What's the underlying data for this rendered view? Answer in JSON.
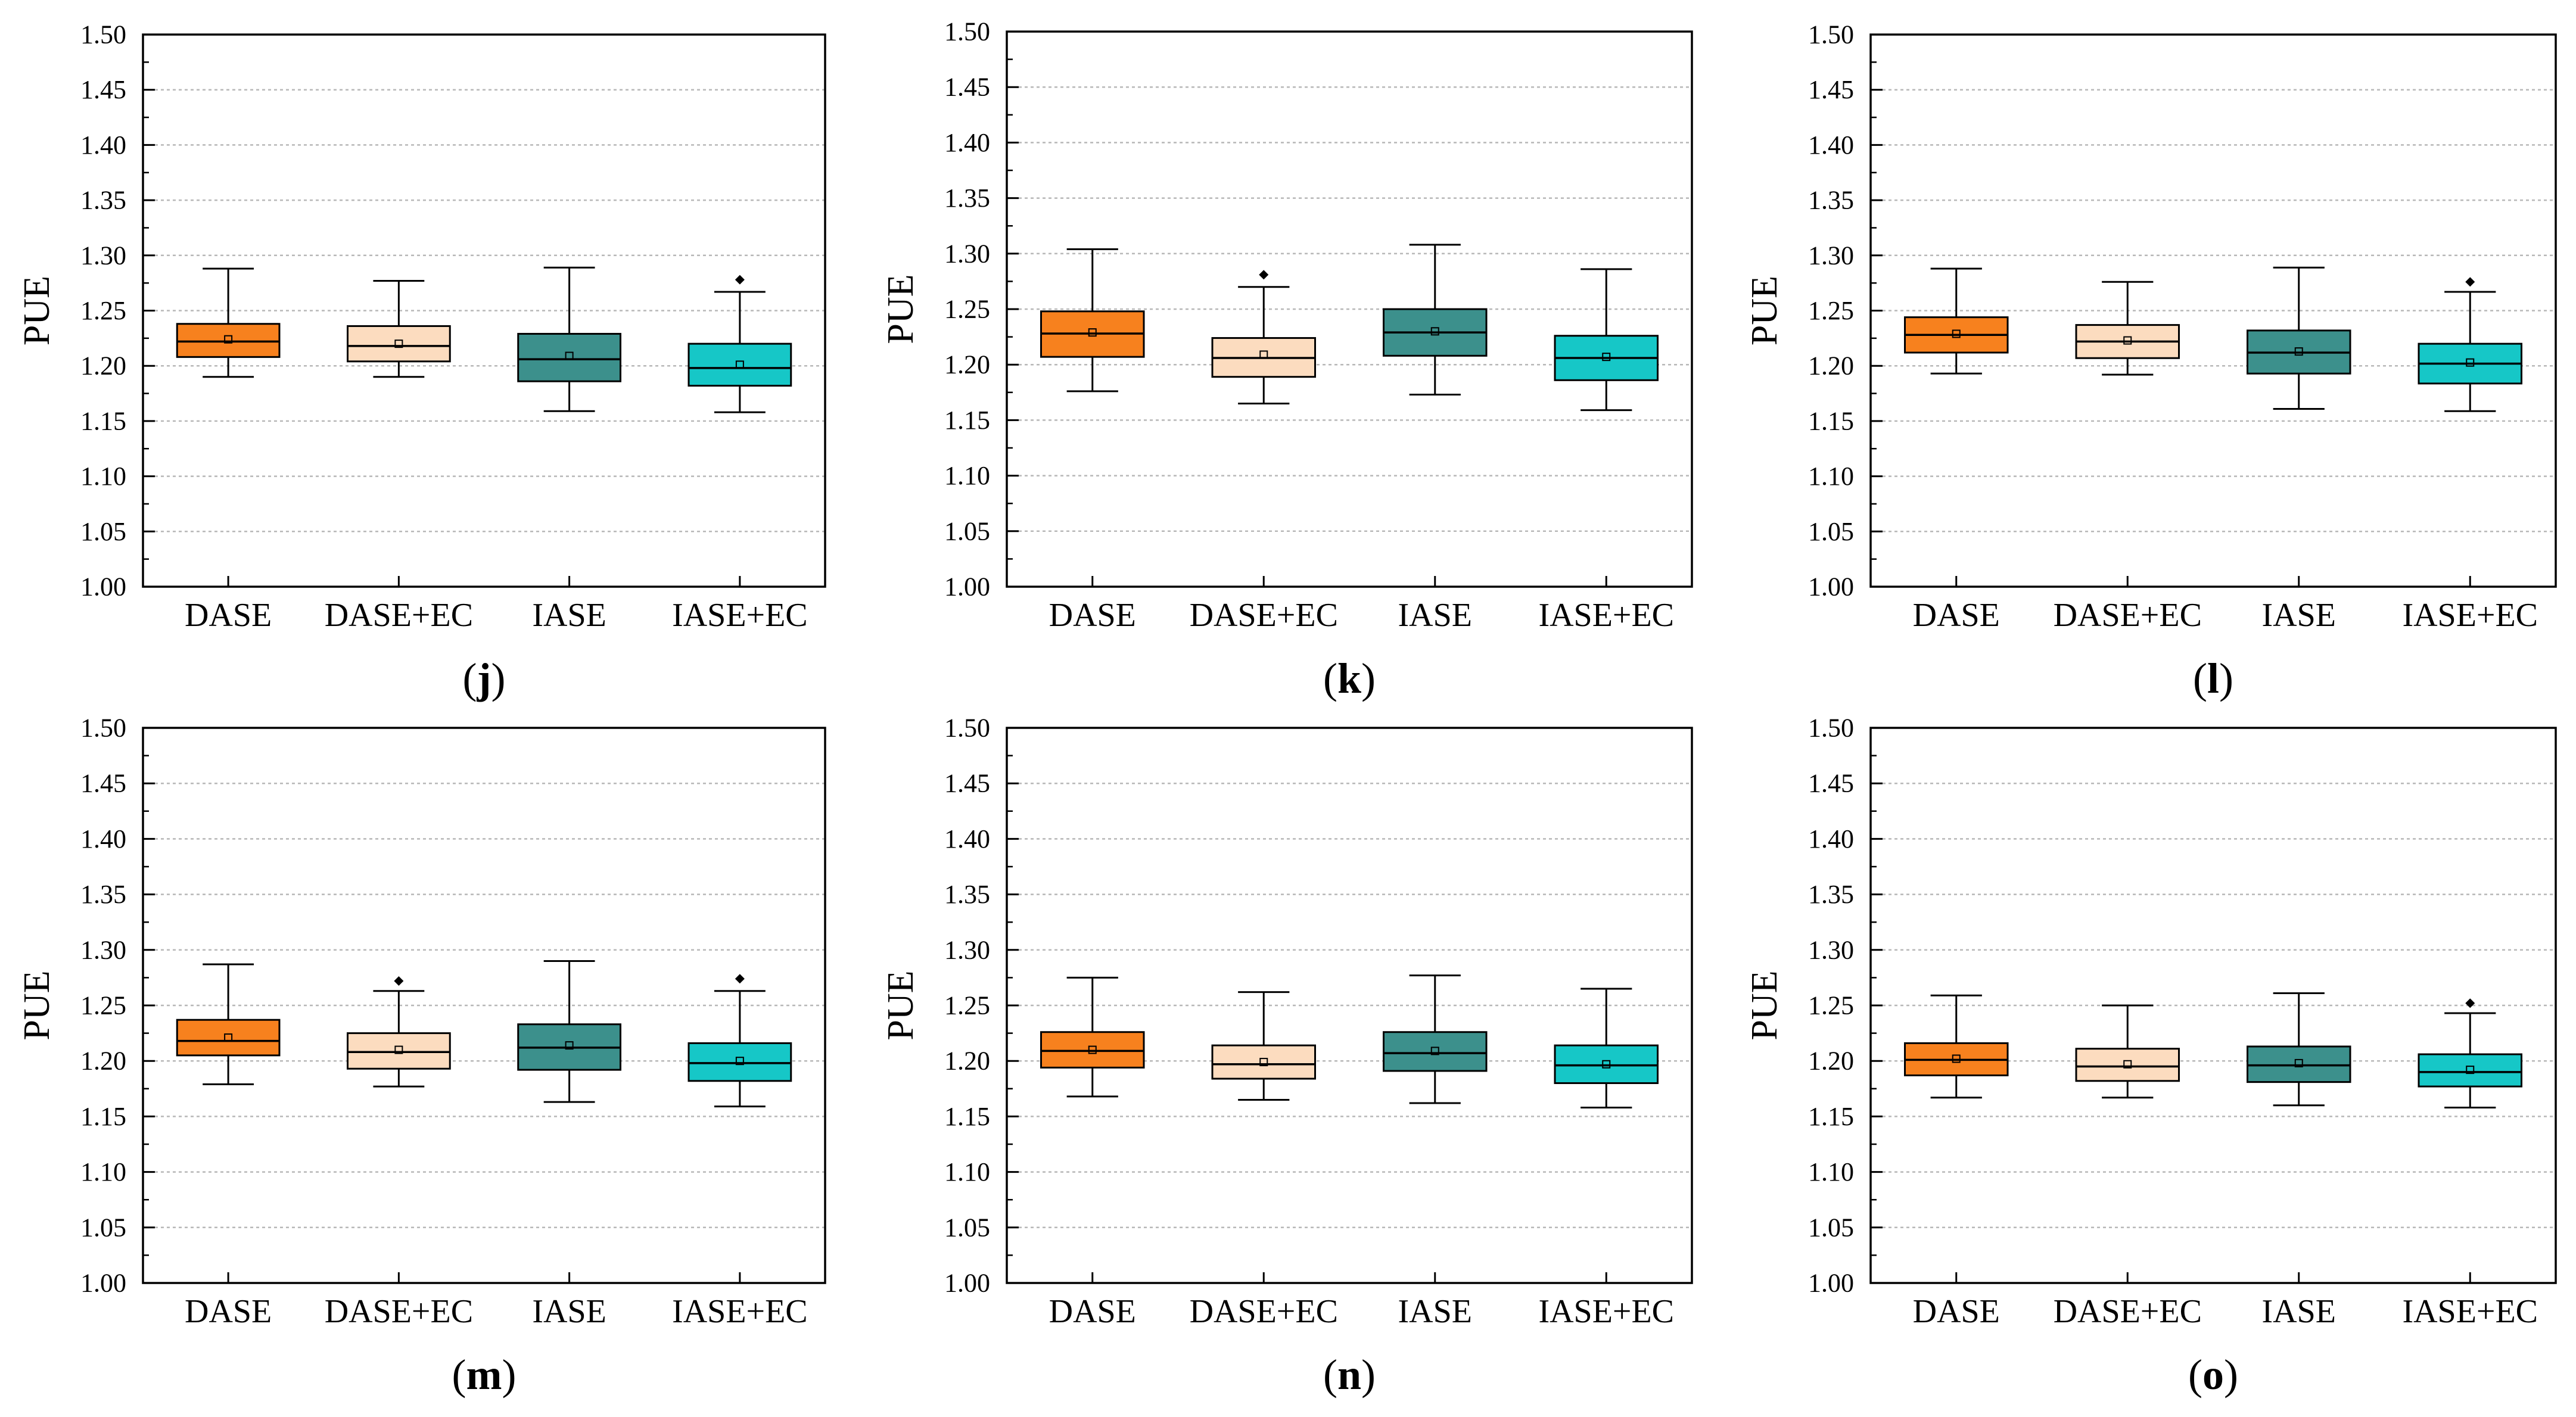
{
  "colors": {
    "DASE": "#F7811E",
    "DASE+EC": "#FCDCBF",
    "IASE": "#3C908C",
    "IASE+EC": "#16C7C7",
    "axis": "#000000",
    "grid": "#B8B8B8"
  },
  "chart_data": [
    {
      "type": "box",
      "panel_label": "j",
      "ylabel": "PUE",
      "ylim": [
        1.0,
        1.5
      ],
      "yticks": [
        "1.00",
        "1.05",
        "1.10",
        "1.15",
        "1.20",
        "1.25",
        "1.30",
        "1.35",
        "1.40",
        "1.45",
        "1.50"
      ],
      "grid": true,
      "categories": [
        "DASE",
        "DASE+EC",
        "IASE",
        "IASE+EC"
      ],
      "boxes": [
        {
          "min": 1.19,
          "q1": 1.208,
          "median": 1.222,
          "q3": 1.238,
          "max": 1.288,
          "mean": 1.224,
          "outliers": []
        },
        {
          "min": 1.19,
          "q1": 1.204,
          "median": 1.218,
          "q3": 1.236,
          "max": 1.277,
          "mean": 1.22,
          "outliers": []
        },
        {
          "min": 1.159,
          "q1": 1.186,
          "median": 1.206,
          "q3": 1.229,
          "max": 1.289,
          "mean": 1.209,
          "outliers": []
        },
        {
          "min": 1.158,
          "q1": 1.182,
          "median": 1.198,
          "q3": 1.22,
          "max": 1.267,
          "mean": 1.201,
          "outliers": [
            1.278
          ]
        }
      ]
    },
    {
      "type": "box",
      "panel_label": "k",
      "ylabel": "PUE",
      "ylim": [
        1.0,
        1.5
      ],
      "yticks": [
        "1.00",
        "1.05",
        "1.10",
        "1.15",
        "1.20",
        "1.25",
        "1.30",
        "1.35",
        "1.40",
        "1.45",
        "1.50"
      ],
      "grid": true,
      "categories": [
        "DASE",
        "DASE+EC",
        "IASE",
        "IASE+EC"
      ],
      "boxes": [
        {
          "min": 1.176,
          "q1": 1.207,
          "median": 1.228,
          "q3": 1.248,
          "max": 1.304,
          "mean": 1.229,
          "outliers": []
        },
        {
          "min": 1.165,
          "q1": 1.189,
          "median": 1.206,
          "q3": 1.224,
          "max": 1.27,
          "mean": 1.209,
          "outliers": [
            1.281
          ]
        },
        {
          "min": 1.173,
          "q1": 1.208,
          "median": 1.229,
          "q3": 1.25,
          "max": 1.308,
          "mean": 1.23,
          "outliers": []
        },
        {
          "min": 1.159,
          "q1": 1.186,
          "median": 1.206,
          "q3": 1.226,
          "max": 1.286,
          "mean": 1.207,
          "outliers": []
        }
      ]
    },
    {
      "type": "box",
      "panel_label": "l",
      "ylabel": "PUE",
      "ylim": [
        1.0,
        1.5
      ],
      "yticks": [
        "1.00",
        "1.05",
        "1.10",
        "1.15",
        "1.20",
        "1.25",
        "1.30",
        "1.35",
        "1.40",
        "1.45",
        "1.50"
      ],
      "grid": true,
      "categories": [
        "DASE",
        "DASE+EC",
        "IASE",
        "IASE+EC"
      ],
      "boxes": [
        {
          "min": 1.193,
          "q1": 1.212,
          "median": 1.228,
          "q3": 1.244,
          "max": 1.288,
          "mean": 1.229,
          "outliers": []
        },
        {
          "min": 1.192,
          "q1": 1.207,
          "median": 1.222,
          "q3": 1.237,
          "max": 1.276,
          "mean": 1.223,
          "outliers": []
        },
        {
          "min": 1.161,
          "q1": 1.193,
          "median": 1.212,
          "q3": 1.232,
          "max": 1.289,
          "mean": 1.213,
          "outliers": []
        },
        {
          "min": 1.159,
          "q1": 1.184,
          "median": 1.202,
          "q3": 1.22,
          "max": 1.267,
          "mean": 1.203,
          "outliers": [
            1.276
          ]
        }
      ]
    },
    {
      "type": "box",
      "panel_label": "m",
      "ylabel": "PUE",
      "ylim": [
        1.0,
        1.5
      ],
      "yticks": [
        "1.00",
        "1.05",
        "1.10",
        "1.15",
        "1.20",
        "1.25",
        "1.30",
        "1.35",
        "1.40",
        "1.45",
        "1.50"
      ],
      "grid": true,
      "categories": [
        "DASE",
        "DASE+EC",
        "IASE",
        "IASE+EC"
      ],
      "boxes": [
        {
          "min": 1.179,
          "q1": 1.205,
          "median": 1.218,
          "q3": 1.237,
          "max": 1.287,
          "mean": 1.221,
          "outliers": []
        },
        {
          "min": 1.177,
          "q1": 1.193,
          "median": 1.208,
          "q3": 1.225,
          "max": 1.263,
          "mean": 1.21,
          "outliers": [
            1.272
          ]
        },
        {
          "min": 1.163,
          "q1": 1.192,
          "median": 1.212,
          "q3": 1.233,
          "max": 1.29,
          "mean": 1.214,
          "outliers": []
        },
        {
          "min": 1.159,
          "q1": 1.182,
          "median": 1.198,
          "q3": 1.216,
          "max": 1.263,
          "mean": 1.2,
          "outliers": [
            1.274
          ]
        }
      ]
    },
    {
      "type": "box",
      "panel_label": "n",
      "ylabel": "PUE",
      "ylim": [
        1.0,
        1.5
      ],
      "yticks": [
        "1.00",
        "1.05",
        "1.10",
        "1.15",
        "1.20",
        "1.25",
        "1.30",
        "1.35",
        "1.40",
        "1.45",
        "1.50"
      ],
      "grid": true,
      "categories": [
        "DASE",
        "DASE+EC",
        "IASE",
        "IASE+EC"
      ],
      "boxes": [
        {
          "min": 1.168,
          "q1": 1.194,
          "median": 1.209,
          "q3": 1.226,
          "max": 1.275,
          "mean": 1.21,
          "outliers": []
        },
        {
          "min": 1.165,
          "q1": 1.184,
          "median": 1.197,
          "q3": 1.214,
          "max": 1.262,
          "mean": 1.199,
          "outliers": []
        },
        {
          "min": 1.162,
          "q1": 1.191,
          "median": 1.207,
          "q3": 1.226,
          "max": 1.277,
          "mean": 1.209,
          "outliers": []
        },
        {
          "min": 1.158,
          "q1": 1.18,
          "median": 1.196,
          "q3": 1.214,
          "max": 1.265,
          "mean": 1.197,
          "outliers": []
        }
      ]
    },
    {
      "type": "box",
      "panel_label": "o",
      "ylabel": "PUE",
      "ylim": [
        1.0,
        1.5
      ],
      "yticks": [
        "1.00",
        "1.05",
        "1.10",
        "1.15",
        "1.20",
        "1.25",
        "1.30",
        "1.35",
        "1.40",
        "1.45",
        "1.50"
      ],
      "grid": true,
      "categories": [
        "DASE",
        "DASE+EC",
        "IASE",
        "IASE+EC"
      ],
      "boxes": [
        {
          "min": 1.167,
          "q1": 1.187,
          "median": 1.201,
          "q3": 1.216,
          "max": 1.259,
          "mean": 1.202,
          "outliers": []
        },
        {
          "min": 1.167,
          "q1": 1.182,
          "median": 1.195,
          "q3": 1.211,
          "max": 1.25,
          "mean": 1.197,
          "outliers": []
        },
        {
          "min": 1.16,
          "q1": 1.181,
          "median": 1.196,
          "q3": 1.213,
          "max": 1.261,
          "mean": 1.198,
          "outliers": []
        },
        {
          "min": 1.158,
          "q1": 1.177,
          "median": 1.19,
          "q3": 1.206,
          "max": 1.243,
          "mean": 1.192,
          "outliers": [
            1.252
          ]
        }
      ]
    }
  ]
}
